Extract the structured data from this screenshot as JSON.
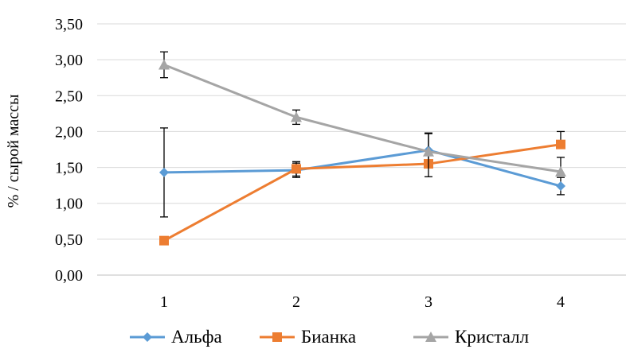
{
  "chart_data": {
    "type": "line",
    "ylabel": "% / сырой массы",
    "xlabel": "",
    "categories": [
      "1",
      "2",
      "3",
      "4"
    ],
    "ylim": [
      0,
      3.5
    ],
    "yticks": [
      "0,00",
      "0,50",
      "1,00",
      "1,50",
      "2,00",
      "2,50",
      "3,00",
      "3,50"
    ],
    "grid": true,
    "legend": "bottom",
    "series": [
      {
        "name": "Альфа",
        "color": "#5B9BD5",
        "marker": "diamond",
        "values": [
          1.43,
          1.46,
          1.74,
          1.24
        ],
        "err_low": [
          0.62,
          0.1,
          0.24,
          0.12
        ],
        "err_high": [
          0.62,
          0.1,
          0.24,
          0.12
        ]
      },
      {
        "name": "Бианка",
        "color": "#ED7D31",
        "marker": "square",
        "values": [
          0.48,
          1.48,
          1.55,
          1.82
        ],
        "err_low": [
          0.0,
          0.1,
          0.0,
          0.0
        ],
        "err_high": [
          0.0,
          0.1,
          0.0,
          0.18
        ]
      },
      {
        "name": "Кристалл",
        "color": "#A5A5A5",
        "marker": "triangle",
        "values": [
          2.93,
          2.2,
          1.72,
          1.44
        ],
        "err_low": [
          0.18,
          0.1,
          0.35,
          0.0
        ],
        "err_high": [
          0.18,
          0.1,
          0.25,
          0.2
        ]
      }
    ]
  }
}
